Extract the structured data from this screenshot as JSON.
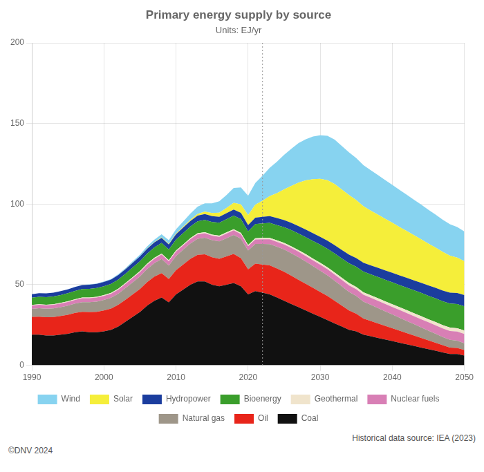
{
  "chart_data": {
    "type": "area",
    "title": "Primary energy supply by source",
    "subtitle": "Units: EJ/yr",
    "stacked": true,
    "grid": true,
    "legend": "bottom",
    "xlim": [
      1990,
      2050
    ],
    "ylim": [
      0,
      200
    ],
    "xticks": [
      1990,
      2000,
      2010,
      2020,
      2030,
      2040,
      2050
    ],
    "yticks": [
      0,
      50,
      100,
      150,
      200
    ],
    "annotations": [
      {
        "type": "vline",
        "x": 2022,
        "color": "#999999"
      },
      {
        "type": "text",
        "text": "Historical data source: IEA (2023)"
      },
      {
        "type": "text",
        "text": "©DNV 2024"
      }
    ],
    "x": [
      1990,
      1991,
      1992,
      1993,
      1994,
      1995,
      1996,
      1997,
      1998,
      1999,
      2000,
      2001,
      2002,
      2003,
      2004,
      2005,
      2006,
      2007,
      2008,
      2009,
      2010,
      2011,
      2012,
      2013,
      2014,
      2015,
      2016,
      2017,
      2018,
      2019,
      2020,
      2021,
      2022,
      2023,
      2024,
      2025,
      2026,
      2027,
      2028,
      2029,
      2030,
      2031,
      2032,
      2033,
      2034,
      2035,
      2036,
      2037,
      2038,
      2039,
      2040,
      2041,
      2042,
      2043,
      2044,
      2045,
      2046,
      2047,
      2048,
      2049,
      2050
    ],
    "series": [
      {
        "name": "Coal",
        "color": "#111111",
        "values": [
          19,
          19,
          18.5,
          18.5,
          19,
          19.5,
          20.5,
          21,
          20.5,
          20.5,
          21,
          22,
          24,
          27,
          30,
          33,
          37,
          40,
          42,
          39,
          44,
          47,
          50,
          52,
          52,
          50,
          49,
          50,
          51,
          49,
          44,
          46,
          45,
          44,
          42,
          40,
          38,
          36,
          34,
          32,
          30,
          28,
          26,
          24,
          22,
          21,
          19,
          18,
          17,
          16,
          15,
          14,
          13,
          12,
          11,
          10,
          9,
          8,
          7,
          7,
          6
        ]
      },
      {
        "name": "Oil",
        "color": "#e8251a",
        "values": [
          11,
          11.2,
          11.3,
          11.4,
          11.6,
          11.8,
          12.0,
          12.2,
          12.5,
          12.7,
          13.0,
          13.2,
          13.5,
          13.7,
          14.0,
          14.3,
          14.6,
          15.0,
          15.2,
          14.5,
          15.0,
          15.5,
          16.0,
          16.5,
          16.8,
          17.0,
          17.0,
          17.5,
          18.0,
          17.5,
          15.5,
          17.0,
          17.5,
          18.0,
          18.0,
          18.0,
          17.5,
          17.0,
          16.5,
          16.0,
          15.5,
          15.0,
          14.0,
          13.0,
          12.0,
          11.0,
          10.0,
          9.5,
          9.0,
          8.5,
          8.0,
          7.5,
          7.0,
          6.5,
          6.0,
          5.5,
          5.0,
          4.5,
          4.0,
          3.8,
          3.5
        ]
      },
      {
        "name": "Natural gas",
        "color": "#9e9689",
        "values": [
          5.0,
          5.2,
          5.3,
          5.4,
          5.5,
          5.7,
          5.8,
          6.0,
          6.2,
          6.3,
          6.5,
          6.7,
          6.9,
          7.2,
          7.5,
          7.8,
          8.1,
          8.4,
          8.7,
          8.4,
          8.8,
          9.2,
          9.6,
          10.0,
          10.3,
          10.6,
          10.9,
          11.3,
          11.8,
          12.0,
          11.7,
          12.3,
          12.8,
          13.2,
          13.5,
          13.8,
          14.0,
          14.0,
          13.8,
          13.5,
          13.2,
          12.8,
          12.4,
          12.0,
          11.5,
          11.0,
          10.5,
          10.0,
          9.5,
          9.0,
          8.5,
          8.0,
          7.5,
          7.0,
          6.5,
          6.0,
          5.5,
          5.0,
          4.8,
          4.5,
          4.2
        ]
      },
      {
        "name": "Nuclear fuels",
        "color": "#d87fb5",
        "values": [
          2.0,
          2.1,
          2.1,
          2.2,
          2.2,
          2.3,
          2.3,
          2.4,
          2.4,
          2.5,
          2.5,
          2.5,
          2.6,
          2.6,
          2.7,
          2.7,
          2.7,
          2.7,
          2.8,
          2.7,
          2.8,
          2.7,
          2.7,
          2.8,
          2.8,
          2.8,
          2.8,
          2.9,
          2.9,
          2.9,
          2.7,
          2.8,
          2.9,
          3.0,
          3.1,
          3.2,
          3.3,
          3.4,
          3.5,
          3.6,
          3.7,
          3.8,
          3.9,
          4.0,
          4.1,
          4.2,
          4.3,
          4.4,
          4.5,
          4.6,
          4.7,
          4.8,
          4.9,
          5.0,
          5.1,
          5.2,
          5.3,
          5.4,
          5.5,
          5.6,
          5.7
        ]
      },
      {
        "name": "Geothermal",
        "color": "#f0e4cc",
        "values": [
          0.4,
          0.4,
          0.4,
          0.4,
          0.4,
          0.4,
          0.4,
          0.5,
          0.5,
          0.5,
          0.5,
          0.5,
          0.5,
          0.5,
          0.5,
          0.6,
          0.6,
          0.6,
          0.6,
          0.6,
          0.6,
          0.6,
          0.6,
          0.6,
          0.7,
          0.7,
          0.7,
          0.7,
          0.7,
          0.7,
          0.7,
          0.7,
          0.8,
          0.8,
          0.9,
          0.9,
          1.0,
          1.0,
          1.1,
          1.1,
          1.2,
          1.2,
          1.3,
          1.3,
          1.4,
          1.4,
          1.5,
          1.5,
          1.6,
          1.6,
          1.7,
          1.7,
          1.8,
          1.8,
          1.9,
          1.9,
          2.0,
          2.0,
          2.1,
          2.1,
          2.2
        ]
      },
      {
        "name": "Bioenergy",
        "color": "#3a9e2b",
        "values": [
          4.5,
          4.6,
          4.7,
          4.8,
          4.9,
          5.0,
          5.1,
          5.2,
          5.3,
          5.4,
          5.5,
          5.6,
          5.7,
          5.8,
          6.0,
          6.1,
          6.3,
          6.4,
          6.6,
          6.6,
          6.8,
          7.0,
          7.2,
          7.4,
          7.6,
          7.8,
          8.0,
          8.2,
          8.4,
          8.6,
          8.5,
          8.8,
          9.0,
          9.3,
          9.5,
          9.8,
          10.0,
          10.3,
          10.6,
          10.9,
          11.2,
          11.5,
          11.8,
          12.0,
          12.3,
          12.5,
          12.8,
          13.0,
          13.2,
          13.4,
          13.6,
          13.8,
          14.0,
          14.2,
          14.4,
          14.5,
          14.7,
          14.8,
          14.9,
          15.0,
          15.0
        ]
      },
      {
        "name": "Hydropower",
        "color": "#1b3d9e",
        "values": [
          2.2,
          2.2,
          2.3,
          2.3,
          2.4,
          2.4,
          2.5,
          2.5,
          2.6,
          2.6,
          2.7,
          2.7,
          2.8,
          2.8,
          2.9,
          3.0,
          3.0,
          3.1,
          3.1,
          3.2,
          3.3,
          3.4,
          3.4,
          3.5,
          3.6,
          3.6,
          3.7,
          3.7,
          3.8,
          3.9,
          3.9,
          4.0,
          4.1,
          4.2,
          4.3,
          4.4,
          4.5,
          4.6,
          4.7,
          4.8,
          4.9,
          5.0,
          5.1,
          5.2,
          5.3,
          5.4,
          5.5,
          5.6,
          5.7,
          5.8,
          5.9,
          6.0,
          6.1,
          6.2,
          6.3,
          6.4,
          6.5,
          6.6,
          6.7,
          6.8,
          6.9
        ]
      },
      {
        "name": "Solar",
        "color": "#f5ee3a",
        "values": [
          0.0,
          0.0,
          0.0,
          0.0,
          0.0,
          0.0,
          0.0,
          0.0,
          0.0,
          0.0,
          0.0,
          0.0,
          0.0,
          0.1,
          0.1,
          0.1,
          0.2,
          0.2,
          0.3,
          0.3,
          0.4,
          0.6,
          0.8,
          1.1,
          1.5,
          2.0,
          2.6,
          3.3,
          4.2,
          5.2,
          6.2,
          8.0,
          10.0,
          12.5,
          15.5,
          19.0,
          23.0,
          27.0,
          30.5,
          33.5,
          36.0,
          37.5,
          38.0,
          37.5,
          37.0,
          36.0,
          35.0,
          34.0,
          33.0,
          32.0,
          31.0,
          30.0,
          29.0,
          28.0,
          27.0,
          26.0,
          25.0,
          24.0,
          23.0,
          22.0,
          21.0
        ]
      },
      {
        "name": "Wind",
        "color": "#87d3f0",
        "values": [
          0.0,
          0.0,
          0.0,
          0.0,
          0.0,
          0.1,
          0.1,
          0.1,
          0.2,
          0.2,
          0.3,
          0.3,
          0.5,
          0.6,
          0.8,
          1.0,
          1.3,
          1.6,
          2.0,
          2.3,
          2.7,
          3.2,
          3.8,
          4.5,
          5.2,
          6.0,
          7.0,
          8.0,
          9.2,
          10.5,
          12.0,
          13.5,
          15.5,
          17.5,
          19.5,
          21.5,
          23.0,
          24.5,
          25.5,
          26.5,
          27.0,
          27.5,
          27.5,
          27.0,
          26.5,
          26.0,
          25.5,
          25.0,
          24.5,
          24.0,
          23.5,
          23.0,
          22.5,
          22.0,
          21.5,
          21.0,
          20.5,
          20.0,
          19.5,
          19.0,
          18.5
        ]
      }
    ]
  }
}
